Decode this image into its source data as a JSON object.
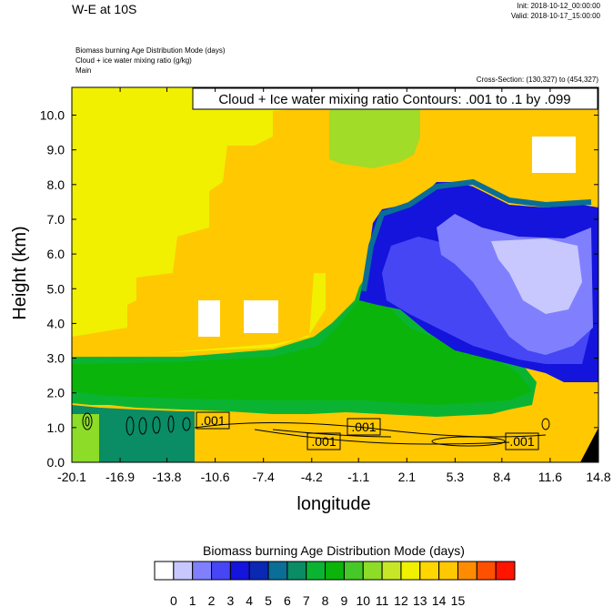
{
  "header": {
    "title": "W-E at 10S",
    "init": "Init: 2018-10-12_00:00:00",
    "valid": "Valid: 2018-10-17_15:00:00"
  },
  "subtitles": [
    "Biomass burning Age Distribution Mode   (days)",
    "Cloud + ice water mixing ratio   (g/kg)",
    "Main"
  ],
  "cross_section": "Cross-Section: (130,327) to (454,327)",
  "contour_caption": "Cloud + Ice water mixing ratio Contours: .001 to .1 by .099",
  "colors": {
    "palette": [
      "#ffffff",
      "#c8c8ff",
      "#8080ff",
      "#4646f5",
      "#1414dc",
      "#0a28b4",
      "#0a6e96",
      "#0a8c64",
      "#0ab432",
      "#0ab40a",
      "#46c828",
      "#8cdc28",
      "#c8e628",
      "#f0f000",
      "#ffd700",
      "#ffc800",
      "#ff8c00",
      "#ff5000",
      "#ff1400"
    ]
  },
  "chart_data": {
    "type": "heatmap",
    "title": "W-E at 10S",
    "xlabel": "longitude",
    "ylabel": "Height (km)",
    "xlim": [
      -20.1,
      14.8
    ],
    "ylim": [
      0.0,
      10.8
    ],
    "x_ticks": [
      "-20.1",
      "-16.9",
      "-13.8",
      "-10.6",
      "-7.4",
      "-4.2",
      "-1.1",
      "2.1",
      "5.3",
      "8.4",
      "11.6",
      "14.8"
    ],
    "y_ticks": [
      "0.0",
      "1.0",
      "2.0",
      "3.0",
      "4.0",
      "5.0",
      "6.0",
      "7.0",
      "8.0",
      "9.0",
      "10.0"
    ],
    "colorbar": {
      "title": "Biomass burning Age Distribution Mode  (days)",
      "labels": [
        "0",
        "1",
        "2",
        "3",
        "4",
        "5",
        "6",
        "7",
        "8",
        "9",
        "10",
        "11",
        "12",
        "13",
        "14",
        "15"
      ]
    },
    "contour_labels": [
      ".001",
      ".001",
      ".001",
      ".001"
    ],
    "regions": [
      {
        "name": "upper-left-yellow",
        "value_days": 12.5
      },
      {
        "name": "background-orange",
        "value_days": 14.0
      },
      {
        "name": "low-level-green",
        "value_days": 8.5
      },
      {
        "name": "mid-level-blue-east",
        "value_days": 4.5
      },
      {
        "name": "upper-pale-blue-east",
        "value_days": 2.0
      },
      {
        "name": "cloud-free-white",
        "value_days": 0.0
      }
    ]
  }
}
